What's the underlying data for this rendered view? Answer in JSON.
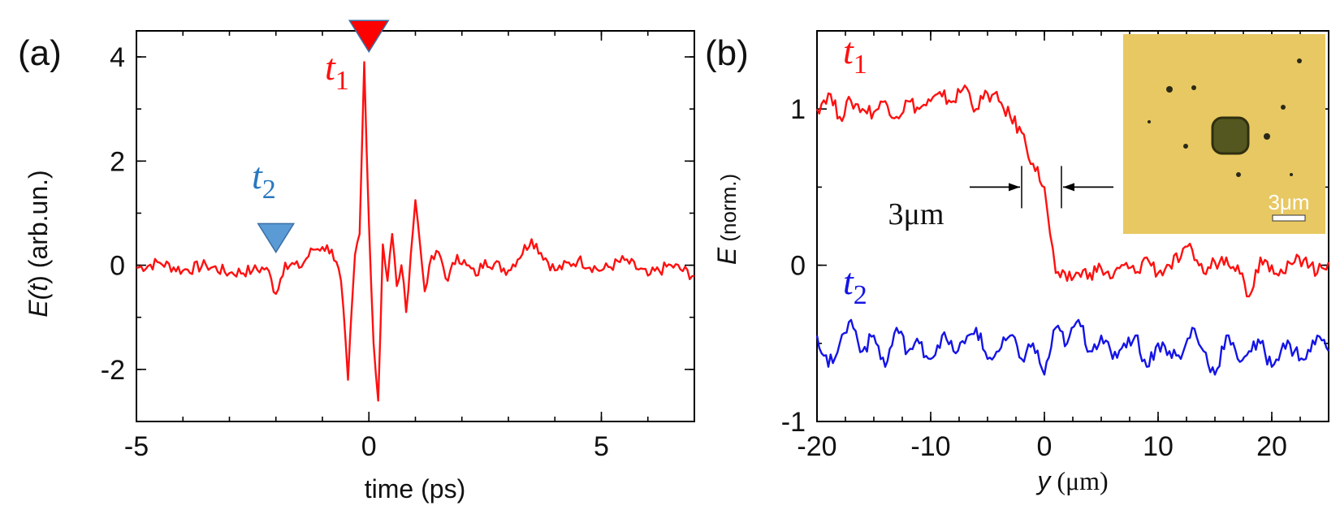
{
  "colors": {
    "red": "#ff1010",
    "blue": "#1414e6",
    "marker_red": "#ff0000",
    "marker_blue": "#5b9bd5",
    "inset_bg": "#e6c860"
  },
  "chart_data": [
    {
      "panel": "(a)",
      "type": "line",
      "xlabel": "time (ps)",
      "ylabel_prefix": "E(",
      "ylabel_var": "t",
      "ylabel_suffix": ") (arb.un.)",
      "xlim": [
        -5,
        7
      ],
      "ylim": [
        -3,
        4.5
      ],
      "xticks": [
        "-5",
        "0",
        "5"
      ],
      "xtick_values": [
        -5,
        0,
        5
      ],
      "yticks": [
        "-2",
        "0",
        "2",
        "4"
      ],
      "ytick_values": [
        -2,
        0,
        2,
        4
      ],
      "series": [
        {
          "name": "E(t)",
          "color": "#ff1010",
          "x": [
            -5.0,
            -4.5,
            -4.0,
            -3.5,
            -3.0,
            -2.5,
            -2.2,
            -2.0,
            -1.8,
            -1.5,
            -1.2,
            -1.0,
            -0.8,
            -0.6,
            -0.45,
            -0.3,
            -0.2,
            -0.1,
            0.0,
            0.1,
            0.2,
            0.3,
            0.4,
            0.5,
            0.6,
            0.7,
            0.8,
            0.9,
            1.0,
            1.1,
            1.2,
            1.3,
            1.5,
            1.7,
            1.9,
            2.1,
            2.3,
            2.5,
            3.0,
            3.5,
            4.0,
            4.5,
            5.0,
            5.5,
            6.0,
            6.5,
            7.0
          ],
          "y": [
            -0.05,
            0.05,
            -0.1,
            0.0,
            -0.15,
            -0.1,
            -0.05,
            -0.55,
            0.05,
            -0.05,
            0.3,
            0.35,
            0.3,
            -0.3,
            -2.2,
            0.2,
            0.6,
            3.9,
            0.8,
            -1.5,
            -2.6,
            0.4,
            -0.3,
            0.6,
            -0.4,
            0.0,
            -0.9,
            0.2,
            1.25,
            0.4,
            -0.5,
            0.0,
            0.25,
            -0.3,
            0.2,
            0.0,
            -0.2,
            0.1,
            -0.1,
            0.5,
            -0.1,
            0.1,
            -0.1,
            0.1,
            -0.2,
            0.0,
            -0.2
          ]
        }
      ],
      "annotations": [
        {
          "label_var": "t",
          "label_sub": "1",
          "x": 0.0,
          "y": 4.1,
          "marker": "down-triangle",
          "color": "#ff0000"
        },
        {
          "label_var": "t",
          "label_sub": "2",
          "x": -2.0,
          "y": 0.25,
          "marker": "down-triangle",
          "color": "#5b9bd5"
        }
      ]
    },
    {
      "panel": "(b)",
      "type": "line",
      "xlabel_var": "y",
      "xlabel_units": " (μm)",
      "ylabel_var": "E",
      "ylabel_units": " (norm.)",
      "xlim": [
        -20,
        25
      ],
      "ylim": [
        -1,
        1.5
      ],
      "xticks": [
        "-20",
        "-10",
        "0",
        "10",
        "20"
      ],
      "xtick_values": [
        -20,
        -10,
        0,
        10,
        20
      ],
      "yticks": [
        "-1",
        "0",
        "1"
      ],
      "ytick_values": [
        -1,
        0,
        1
      ],
      "series": [
        {
          "name": "t1",
          "color": "#ff1010",
          "x": [
            -20,
            -19,
            -18,
            -17,
            -16,
            -15,
            -14,
            -13,
            -12,
            -11,
            -10,
            -9,
            -8,
            -7,
            -6,
            -5,
            -4,
            -3,
            -2,
            -1,
            0,
            0.5,
            1,
            2,
            3,
            4,
            5,
            6,
            7,
            8,
            9,
            10,
            11,
            12,
            13,
            14,
            15,
            16,
            17,
            18,
            19,
            20,
            21,
            22,
            23,
            24,
            25
          ],
          "y": [
            1.0,
            1.1,
            0.95,
            1.05,
            1.0,
            0.98,
            1.05,
            0.95,
            1.05,
            1.0,
            1.05,
            1.08,
            1.05,
            1.15,
            1.0,
            1.1,
            1.05,
            0.95,
            0.85,
            0.65,
            0.5,
            0.2,
            -0.05,
            -0.1,
            -0.05,
            -0.05,
            -0.02,
            -0.08,
            0.0,
            -0.05,
            0.05,
            -0.05,
            0.0,
            0.05,
            0.1,
            -0.05,
            0.02,
            0.05,
            0.0,
            -0.2,
            0.05,
            0.0,
            -0.05,
            0.02,
            0.05,
            -0.05,
            0.02
          ]
        },
        {
          "name": "t2",
          "color": "#1414e6",
          "x": [
            -20,
            -19,
            -18,
            -17,
            -16,
            -15,
            -14,
            -13,
            -12,
            -11,
            -10,
            -9,
            -8,
            -7,
            -6,
            -5,
            -4,
            -3,
            -2,
            -1,
            0,
            1,
            2,
            3,
            4,
            5,
            6,
            7,
            8,
            9,
            10,
            11,
            12,
            13,
            14,
            15,
            16,
            17,
            18,
            19,
            20,
            21,
            22,
            23,
            24,
            25
          ],
          "y": [
            -0.45,
            -0.65,
            -0.5,
            -0.35,
            -0.55,
            -0.45,
            -0.65,
            -0.4,
            -0.55,
            -0.5,
            -0.6,
            -0.45,
            -0.55,
            -0.5,
            -0.4,
            -0.6,
            -0.55,
            -0.45,
            -0.6,
            -0.5,
            -0.7,
            -0.4,
            -0.5,
            -0.35,
            -0.55,
            -0.45,
            -0.6,
            -0.5,
            -0.45,
            -0.65,
            -0.5,
            -0.55,
            -0.6,
            -0.4,
            -0.55,
            -0.7,
            -0.45,
            -0.6,
            -0.55,
            -0.5,
            -0.65,
            -0.5,
            -0.55,
            -0.6,
            -0.45,
            -0.55
          ]
        }
      ],
      "annotations": [
        {
          "label_var": "t",
          "label_sub": "1",
          "color": "#ff1010"
        },
        {
          "label_var": "t",
          "label_sub": "2",
          "color": "#1414e6"
        },
        {
          "label": "3μm",
          "type": "width-arrows",
          "x1": -2,
          "x2": 1.5,
          "y": 0.5
        }
      ],
      "inset": {
        "scale_bar_label": "3μm",
        "description": "optical image"
      }
    }
  ]
}
